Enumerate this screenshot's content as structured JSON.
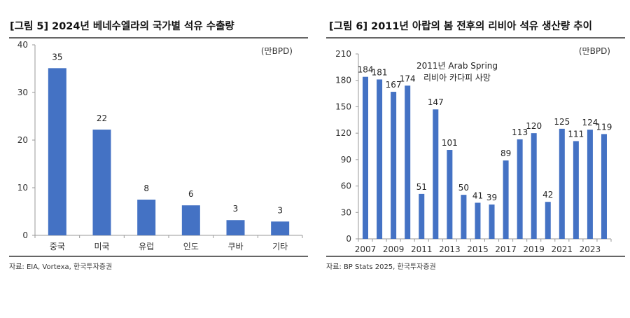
{
  "colors": {
    "bar": "#4472C4",
    "rule": "#333333",
    "axis": "#999999"
  },
  "chart_data": [
    {
      "type": "bar",
      "title": "[그림 5] 2024년 베네수엘라의 국가별 석유 수출량",
      "unit": "(만BPD)",
      "categories": [
        "중국",
        "미국",
        "유럽",
        "인도",
        "쿠바",
        "기타"
      ],
      "values": [
        35.1,
        22.2,
        7.5,
        6.3,
        3.2,
        2.9
      ],
      "data_labels": [
        "35",
        "22",
        "8",
        "6",
        "3",
        "3"
      ],
      "ylim": [
        0,
        40
      ],
      "yticks": [
        "0",
        "10",
        "20",
        "30",
        "40"
      ],
      "source": "자료: EIA, Vortexa, 한국투자증권",
      "grid": false
    },
    {
      "type": "bar",
      "title": "[그림 6] 2011년 아랍의 봄 전후의 리비아 석유 생산량 추이",
      "unit": "(만BPD)",
      "categories": [
        "2007",
        "2008",
        "2009",
        "2010",
        "2011",
        "2012",
        "2013",
        "2014",
        "2015",
        "2016",
        "2017",
        "2018",
        "2019",
        "2020",
        "2021",
        "2022",
        "2023",
        "2024"
      ],
      "values": [
        184,
        181,
        167,
        174,
        51,
        147,
        101,
        50,
        41,
        39,
        89,
        113,
        120,
        42,
        125,
        111,
        124,
        119
      ],
      "data_labels": [
        "184",
        "181",
        "167",
        "174",
        "51",
        "147",
        "101",
        "50",
        "41",
        "39",
        "89",
        "113",
        "120",
        "42",
        "125",
        "111",
        "124",
        "119"
      ],
      "xtick_labels": [
        "2007",
        "2009",
        "2011",
        "2013",
        "2015",
        "2017",
        "2019",
        "2021",
        "2023"
      ],
      "ylim": [
        0,
        210
      ],
      "yticks": [
        "0",
        "30",
        "60",
        "90",
        "120",
        "150",
        "180",
        "210"
      ],
      "annotation": [
        "2011년 Arab Spring",
        "리비아 카다피 사망"
      ],
      "source": "자료: BP Stats 2025, 한국투자증권",
      "grid": false
    }
  ]
}
